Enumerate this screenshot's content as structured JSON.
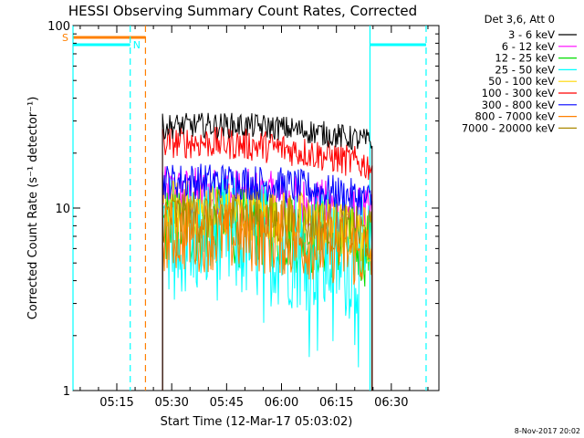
{
  "chart_data": {
    "type": "line",
    "title": "HESSI Observing Summary Count Rates, Corrected",
    "xlabel": "Start Time (12-Mar-17 05:03:02)",
    "ylabel": "Corrected Count Rate (s⁻¹ detector⁻¹)",
    "y_scale": "log",
    "ylim": [
      1,
      100
    ],
    "xlim": [
      "05:03:02",
      "06:43:00"
    ],
    "x_ticks": [
      "05:15",
      "05:30",
      "05:45",
      "06:00",
      "06:15",
      "06:30"
    ],
    "y_ticks": [
      "1",
      "10",
      "100"
    ],
    "legend_title": "Det 3,6, Att 0",
    "legend_position": "right",
    "series": [
      {
        "name": "3 - 6 keV",
        "color": "#000000",
        "start_value": 28,
        "end_value": 23
      },
      {
        "name": "6 - 12 keV",
        "color": "#ff00ff",
        "start_value": 12,
        "end_value": 9
      },
      {
        "name": "12 - 25 keV",
        "color": "#00dd00",
        "start_value": 8,
        "end_value": 6
      },
      {
        "name": "25 - 50 keV",
        "color": "#00ffff",
        "start_value": 7,
        "end_value": 5
      },
      {
        "name": "50 - 100 keV",
        "color": "#ffd700",
        "start_value": 10,
        "end_value": 7
      },
      {
        "name": "100 - 300 keV",
        "color": "#ff0000",
        "start_value": 23,
        "end_value": 17
      },
      {
        "name": "300 - 800 keV",
        "color": "#0000ff",
        "start_value": 14,
        "end_value": 11
      },
      {
        "name": "800 - 7000 keV",
        "color": "#ff8000",
        "start_value": 7,
        "end_value": 5.5
      },
      {
        "name": "7000 - 20000 keV",
        "color": "#aa8800",
        "start_value": 9,
        "end_value": 7
      }
    ],
    "data_interval": [
      "05:27:30",
      "06:24:45"
    ],
    "flags": [
      {
        "label": "S",
        "color": "#ff8000",
        "interval": [
          "05:03:02",
          "05:22:50"
        ]
      },
      {
        "label": "N",
        "color": "#00ffff",
        "interval": [
          "05:03:02",
          "05:18:40"
        ]
      },
      {
        "label": "",
        "color": "#00ffff",
        "interval": [
          "06:24:10",
          "06:39:30"
        ]
      }
    ],
    "vertical_markers": [
      {
        "time": "05:03:02",
        "color": "#00ffff",
        "style": "solid"
      },
      {
        "time": "05:18:40",
        "color": "#00ffff",
        "style": "dashed"
      },
      {
        "time": "05:22:50",
        "color": "#ff8000",
        "style": "dashed"
      },
      {
        "time": "06:24:10",
        "color": "#00ffff",
        "style": "solid"
      },
      {
        "time": "06:39:30",
        "color": "#00ffff",
        "style": "dashed"
      }
    ],
    "grid": false
  },
  "footer_date": "8-Nov-2017 20:02"
}
